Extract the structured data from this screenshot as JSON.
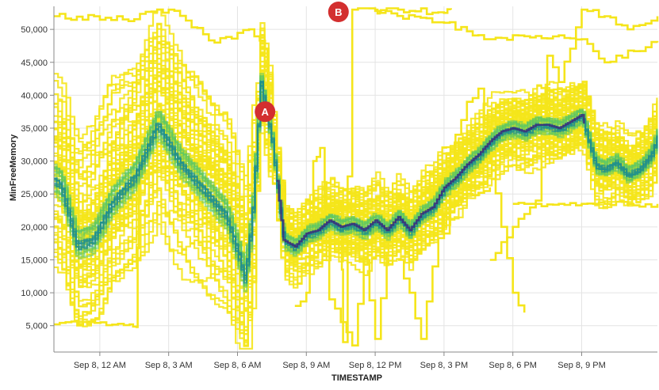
{
  "chart_data": {
    "type": "line",
    "title": "",
    "xlabel": "TIMESTAMP",
    "ylabel": "MinFreeMemory",
    "x_ticks": [
      "Sep 8, 12 AM",
      "Sep 8, 3 AM",
      "Sep 8, 6 AM",
      "Sep 8, 9 AM",
      "Sep 8, 12 PM",
      "Sep 8, 3 PM",
      "Sep 8, 6 PM",
      "Sep 8, 9 PM"
    ],
    "y_ticks": [
      "5,000",
      "10,000",
      "15,000",
      "20,000",
      "25,000",
      "30,000",
      "35,000",
      "40,000",
      "45,000",
      "50,000"
    ],
    "x_range_hours": [
      -2,
      24.3
    ],
    "x_range_note": "hours relative to Sep 8, 12 AM",
    "ylim": [
      1000,
      53500
    ],
    "grid": true,
    "rendering": "density heatmap of many time series (yellow = sparse, dark blue/purple = dense)",
    "colors": {
      "sparse": "#f5e51b",
      "medium": "#5ec962",
      "dense": "#21918c",
      "densest": "#3b2a7a",
      "marker": "#d32f2f"
    },
    "density_band": {
      "x": [
        -2,
        -1.7,
        -1,
        -0.3,
        0.5,
        1.5,
        2.5,
        3.5,
        4.5,
        5.5,
        6,
        6.3,
        6.6,
        7,
        7.5,
        8,
        8.5,
        9,
        9.5,
        10,
        10.5,
        11,
        11.5,
        12,
        12.5,
        13,
        13.5,
        14,
        14.5,
        15,
        15.5,
        16,
        16.5,
        17,
        17.5,
        18,
        18.5,
        19,
        19.5,
        20,
        20.5,
        21,
        21.3,
        21.6,
        22,
        22.5,
        23,
        23.5,
        24,
        24.3
      ],
      "y": [
        27500,
        26500,
        17500,
        18500,
        24000,
        28000,
        36000,
        30000,
        26000,
        22000,
        16500,
        12500,
        21000,
        42000,
        33000,
        18000,
        17000,
        19000,
        19500,
        21000,
        20000,
        20500,
        19500,
        21000,
        19500,
        21500,
        19500,
        22000,
        23000,
        26000,
        27500,
        29500,
        31000,
        33000,
        34500,
        35000,
        34500,
        35500,
        35500,
        35000,
        36000,
        37000,
        33000,
        29500,
        29000,
        30000,
        28000,
        29000,
        31000,
        34000
      ]
    },
    "outlier_series": [
      {
        "x": [
          -2,
          1.3,
          1.6,
          1.7,
          2.5,
          5.5
        ],
        "y": [
          5200,
          5200,
          4800,
          28000,
          29000,
          30000
        ]
      },
      {
        "x": [
          -2,
          1,
          3,
          5,
          6.5,
          7.2,
          7.4,
          8,
          9,
          10.5,
          10.6,
          11,
          13,
          15,
          15.3
        ],
        "y": [
          52000,
          51500,
          53000,
          48000,
          50000,
          47000,
          35000,
          20000,
          19000,
          24000,
          2500,
          53000,
          53000,
          52500,
          53000
        ]
      },
      {
        "x": [
          12,
          12.2,
          15,
          17,
          19,
          21,
          22,
          24.3
        ],
        "y": [
          53000,
          52500,
          51000,
          48500,
          49000,
          48500,
          45000,
          48000
        ]
      },
      {
        "x": [
          17,
          18,
          19,
          19.5,
          20,
          21,
          22,
          23,
          24.3
        ],
        "y": [
          15000,
          20000,
          24000,
          46000,
          42000,
          53000,
          52000,
          50000,
          52000
        ]
      },
      {
        "x": [
          8.5,
          9,
          9.3,
          9.6,
          10,
          11,
          11.5,
          12,
          12.5
        ],
        "y": [
          8000,
          10000,
          30000,
          32000,
          9000,
          2000,
          15000,
          3000,
          16000
        ]
      },
      {
        "x": [
          18,
          18.5,
          19,
          20,
          21,
          22,
          23,
          24.3
        ],
        "y": [
          23500,
          23500,
          23500,
          23500,
          23500,
          23500,
          23500,
          23500
        ]
      },
      {
        "x": [
          15,
          15.5,
          16,
          16.5,
          17,
          17.5,
          18,
          18.5
        ],
        "y": [
          19000,
          34000,
          39000,
          41000,
          30000,
          20000,
          10000,
          7000
        ]
      },
      {
        "x": [
          13,
          13.5,
          14,
          14.5,
          15,
          16,
          17
        ],
        "y": [
          15000,
          10000,
          3000,
          14000,
          22000,
          25000,
          26000
        ]
      }
    ],
    "annotations": [
      {
        "label": "A",
        "x": 7.2,
        "y": 37500
      },
      {
        "label": "B",
        "x": 10.4,
        "y": 55000
      }
    ]
  }
}
